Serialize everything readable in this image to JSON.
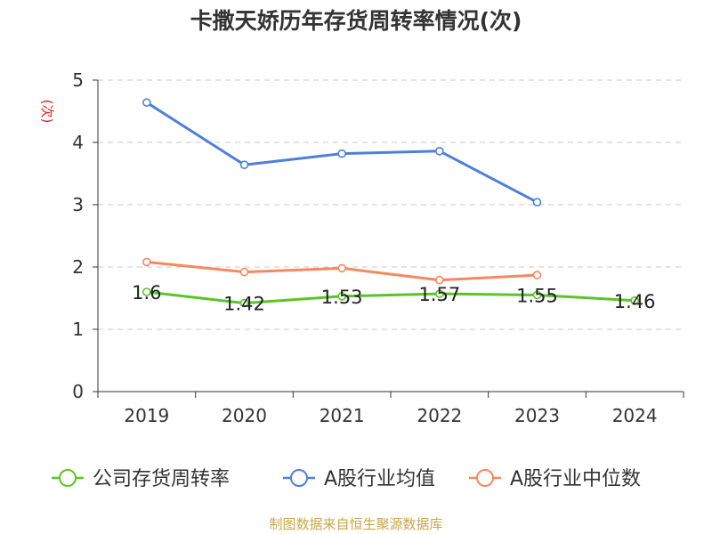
{
  "title": "卡撒天娇历年存货周转率情况(次)",
  "source": "制图数据来自恒生聚源数据库",
  "chart_data": {
    "type": "line",
    "title": "卡撒天娇历年存货周转率情况(次)",
    "ylabel": "(次)",
    "xlabel": "",
    "ylim": [
      0,
      5
    ],
    "yticks": [
      "0",
      "1",
      "2",
      "3",
      "4",
      "5"
    ],
    "categories": [
      "2019",
      "2020",
      "2021",
      "2022",
      "2023",
      "2024"
    ],
    "grid": true,
    "legend_position": "bottom",
    "series": [
      {
        "name": "公司存货周转率",
        "color": "#5bc427",
        "values": [
          1.6,
          1.42,
          1.53,
          1.57,
          1.55,
          1.46
        ],
        "labels": [
          "1.6",
          "1.42",
          "1.53",
          "1.57",
          "1.55",
          "1.46"
        ]
      },
      {
        "name": "A股行业均值",
        "color": "#4f7fd9",
        "values": [
          4.64,
          3.64,
          3.82,
          3.86,
          3.04,
          null
        ]
      },
      {
        "name": "A股行业中位数",
        "color": "#f4895f",
        "values": [
          2.08,
          1.92,
          1.98,
          1.79,
          1.87,
          null
        ]
      }
    ]
  }
}
